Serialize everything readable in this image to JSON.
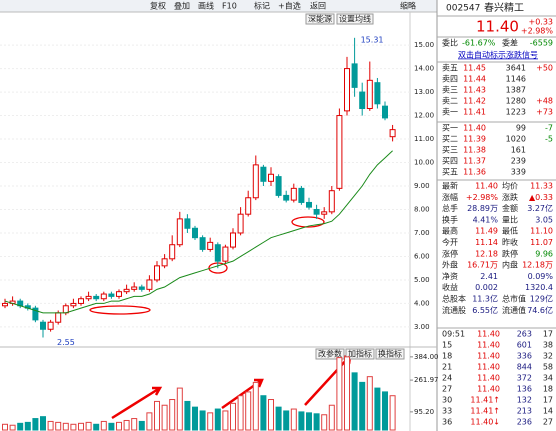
{
  "toolbar": {
    "buttons": [
      "复权",
      "叠加",
      "画线",
      "F10",
      "标记",
      "+自选",
      "返回"
    ],
    "corner": "缩略",
    "sub_buttons": [
      "深能源",
      "设置均线"
    ],
    "pane_buttons": [
      "改参数",
      "加指标",
      "换指标"
    ]
  },
  "chart_data": {
    "type": "candlestick",
    "annotations": [
      {
        "text": "15.31",
        "value": 15.31
      },
      {
        "text": "2.55",
        "value": 2.55
      }
    ],
    "open": [
      3.9,
      4.0,
      4.1,
      3.9,
      3.8,
      3.2,
      2.9,
      3.2,
      3.6,
      3.9,
      4.0,
      4.2,
      4.3,
      4.2,
      4.4,
      4.3,
      4.5,
      4.6,
      4.7,
      4.6,
      5.0,
      5.6,
      5.9,
      6.5,
      7.6,
      7.2,
      6.8,
      6.3,
      6.5,
      5.8,
      6.4,
      7.0,
      7.8,
      8.5,
      9.8,
      9.2,
      9.4,
      8.6,
      8.4,
      8.9,
      8.3,
      8.0,
      7.8,
      7.9,
      8.9,
      12.2,
      14.2,
      13.0,
      12.3,
      13.4,
      12.4,
      11.1
    ],
    "high": [
      4.2,
      4.3,
      4.2,
      4.0,
      3.9,
      3.3,
      3.3,
      3.7,
      4.0,
      4.2,
      4.3,
      4.5,
      4.4,
      4.5,
      4.5,
      4.6,
      4.8,
      4.9,
      4.8,
      5.2,
      5.8,
      6.1,
      6.9,
      7.9,
      7.8,
      7.3,
      6.9,
      6.8,
      6.6,
      6.5,
      7.2,
      8.1,
      8.8,
      10.3,
      9.9,
      9.8,
      9.5,
      8.8,
      9.1,
      9.0,
      8.5,
      8.2,
      8.1,
      9.0,
      12.3,
      14.5,
      15.31,
      13.4,
      14.3,
      13.6,
      12.6,
      11.6
    ],
    "low": [
      3.8,
      3.9,
      3.8,
      3.7,
      3.2,
      2.55,
      2.8,
      3.1,
      3.5,
      3.8,
      3.9,
      4.1,
      4.1,
      4.1,
      4.2,
      4.2,
      4.4,
      4.5,
      4.5,
      4.5,
      4.9,
      5.5,
      5.8,
      6.4,
      7.0,
      6.7,
      6.2,
      6.2,
      5.5,
      5.7,
      6.3,
      6.9,
      7.7,
      8.4,
      9.0,
      9.0,
      8.5,
      8.3,
      8.3,
      8.2,
      8.0,
      7.6,
      7.6,
      7.8,
      8.8,
      12.0,
      12.8,
      12.0,
      12.2,
      12.3,
      11.8,
      10.9
    ],
    "close": [
      4.0,
      4.1,
      3.9,
      3.8,
      3.3,
      2.9,
      3.2,
      3.6,
      3.9,
      4.0,
      4.2,
      4.3,
      4.2,
      4.4,
      4.3,
      4.5,
      4.6,
      4.7,
      4.6,
      5.0,
      5.6,
      5.9,
      6.5,
      7.6,
      7.2,
      6.8,
      6.3,
      6.6,
      5.8,
      6.4,
      7.0,
      7.8,
      8.5,
      9.9,
      9.2,
      9.5,
      8.6,
      8.4,
      8.9,
      8.3,
      8.1,
      7.8,
      7.9,
      8.8,
      12.0,
      14.0,
      13.2,
      12.3,
      13.5,
      12.5,
      11.9,
      11.4
    ],
    "ma": [
      4.1,
      4.0,
      3.9,
      3.8,
      3.7,
      3.6,
      3.6,
      3.6,
      3.6,
      3.7,
      3.8,
      3.9,
      4.0,
      4.0,
      4.1,
      4.1,
      4.2,
      4.3,
      4.3,
      4.4,
      4.6,
      4.7,
      4.9,
      5.1,
      5.2,
      5.3,
      5.4,
      5.5,
      5.6,
      5.7,
      5.8,
      6.0,
      6.2,
      6.4,
      6.6,
      6.8,
      6.9,
      7.0,
      7.1,
      7.2,
      7.3,
      7.35,
      7.4,
      7.5,
      7.8,
      8.2,
      8.6,
      9.0,
      9.5,
      9.9,
      10.2,
      10.5
    ],
    "volume": [
      30,
      25,
      35,
      40,
      60,
      70,
      45,
      40,
      35,
      30,
      35,
      40,
      30,
      45,
      35,
      40,
      50,
      60,
      45,
      90,
      150,
      130,
      160,
      220,
      150,
      120,
      100,
      90,
      110,
      100,
      140,
      180,
      200,
      250,
      180,
      160,
      120,
      100,
      110,
      95,
      90,
      85,
      80,
      130,
      380,
      384,
      300,
      250,
      280,
      220,
      200,
      180
    ],
    "up_color": "#e00000",
    "down_color": "#009a9a",
    "ma_color": "#1a8a1a",
    "volume_color": "#e04040",
    "ylim": [
      2.23,
      15.43
    ],
    "yticks": [
      {
        "value": 3,
        "label": "3.00"
      },
      {
        "value": 4,
        "label": "4.00"
      },
      {
        "value": 5,
        "label": "5.00"
      },
      {
        "value": 6,
        "label": "6.00"
      },
      {
        "value": 7,
        "label": "7.00"
      },
      {
        "value": 8,
        "label": "8.00"
      },
      {
        "value": 9,
        "label": "9.00"
      },
      {
        "value": 10,
        "label": "10.00"
      },
      {
        "value": 11,
        "label": "11.00"
      },
      {
        "value": 12,
        "label": "12.00"
      },
      {
        "value": 13,
        "label": "13.00"
      },
      {
        "value": 14,
        "label": "14.00"
      },
      {
        "value": 15,
        "label": "15.00"
      }
    ],
    "y2lim": [
      0,
      420
    ],
    "y2ticks": [
      {
        "value": 95.2,
        "label": "95.20"
      },
      {
        "value": 261.97,
        "label": "261.97"
      },
      {
        "value": 384,
        "label": "384.00"
      }
    ]
  },
  "quote": {
    "code": "002547",
    "name": "春兴精工",
    "price": "11.40",
    "change": "+0.33",
    "pct": "+2.98%",
    "weibi_label": "委比",
    "weibi": "-61.67%",
    "weicha_label": "委差",
    "weicha": "-6559",
    "link": "双击自动标示涨跌信号",
    "asks": [
      [
        "卖五",
        "11.45",
        "3641",
        "+50"
      ],
      [
        "卖四",
        "11.44",
        "1146",
        null
      ],
      [
        "卖三",
        "11.43",
        "1387",
        null
      ],
      [
        "卖二",
        "11.42",
        "1280",
        "+48"
      ],
      [
        "卖一",
        "11.41",
        "1223",
        "+73"
      ]
    ],
    "bids": [
      [
        "买一",
        "11.40",
        "99",
        "-7"
      ],
      [
        "买二",
        "11.39",
        "1020",
        "-5"
      ],
      [
        "买三",
        "11.38",
        "161",
        null
      ],
      [
        "买四",
        "11.37",
        "239",
        null
      ],
      [
        "买五",
        "11.36",
        "339",
        null
      ]
    ],
    "stats": [
      [
        "最新",
        "11.40",
        "均价",
        "11.33"
      ],
      [
        "涨幅",
        "+2.98%",
        "涨跌",
        "▲0.33"
      ],
      [
        "总手",
        "28.89万",
        "金额",
        "3.27亿"
      ],
      [
        "换手",
        "4.41%",
        "量比",
        "3.05"
      ],
      [
        "最高",
        "11.49",
        "最低",
        "11.10"
      ],
      [
        "今开",
        "11.14",
        "昨收",
        "11.07"
      ],
      [
        "涨停",
        "12.18",
        "跌停",
        "9.96"
      ],
      [
        "外盘",
        "16.71万",
        "内盘",
        "12.18万"
      ],
      [
        "净资",
        "2.41",
        "",
        "0.09%"
      ],
      [
        "收益",
        "0.002",
        "",
        "1320.4"
      ],
      [
        "总股本",
        "11.3亿",
        "总市值",
        "129亿"
      ],
      [
        "流通股",
        "6.55亿",
        "流通值",
        "74.6亿"
      ]
    ],
    "ticks": [
      [
        "09:51",
        "11.40",
        "263",
        "17"
      ],
      [
        "15",
        "11.40",
        "601",
        "38"
      ],
      [
        "18",
        "11.40",
        "336",
        "32"
      ],
      [
        "21",
        "11.40",
        "844",
        "58"
      ],
      [
        "24",
        "11.40",
        "372",
        "34"
      ],
      [
        "27",
        "11.40",
        "136",
        "18"
      ],
      [
        "30",
        "11.41↑",
        "132",
        "17"
      ],
      [
        "33",
        "11.41↑",
        "213",
        "14"
      ],
      [
        "36",
        "11.40↓",
        "236",
        "27"
      ]
    ]
  }
}
